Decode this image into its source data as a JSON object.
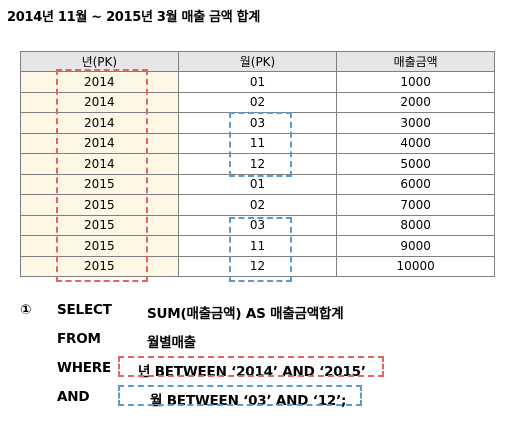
{
  "title": "2014년 11월 ~ 2015년 3월 매출 금액 합계",
  "table": {
    "headers": [
      "년(PK)",
      "월(PK)",
      "매출금액"
    ],
    "rows": [
      [
        "2014",
        "01",
        "1000"
      ],
      [
        "2014",
        "02",
        "2000"
      ],
      [
        "2014",
        "03",
        "3000"
      ],
      [
        "2014",
        "11",
        "4000"
      ],
      [
        "2014",
        "12",
        "5000"
      ],
      [
        "2015",
        "01",
        "6000"
      ],
      [
        "2015",
        "02",
        "7000"
      ],
      [
        "2015",
        "03",
        "8000"
      ],
      [
        "2015",
        "11",
        "9000"
      ],
      [
        "2015",
        "12",
        "10000"
      ]
    ]
  },
  "query": {
    "number": "①",
    "select_kw": "SELECT",
    "select_expr": "SUM(매출금액) AS 매출금액합계",
    "from_kw": "FROM",
    "from_table": "월별매출",
    "where_kw": "WHERE",
    "where_cond": "년 BETWEEN ‘2014’ AND ‘2015’",
    "and_kw": "AND",
    "and_cond": "월 BETWEEN ‘03’ AND ‘12’;"
  },
  "colors": {
    "red_dash": "#e06666",
    "blue_dash": "#5b9bd5",
    "header_bg": "#e7e6e6",
    "year_bg": "#fff7e6"
  }
}
